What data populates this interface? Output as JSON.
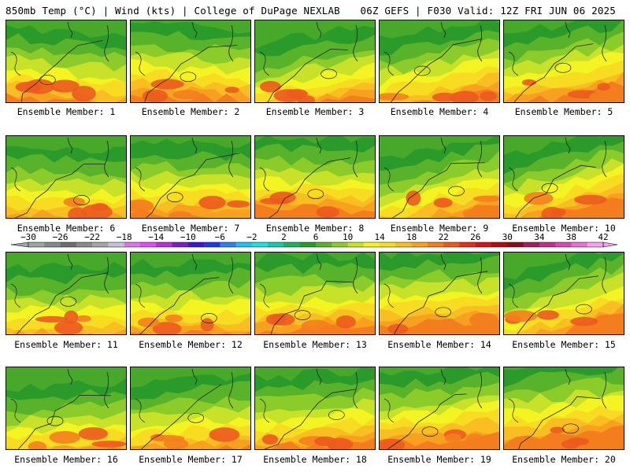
{
  "header": {
    "left": "850mb Temp (°C) | Wind (kts) | College of DuPage NEXLAB",
    "right": "06Z GEFS | F030 Valid: 12Z FRI JUN 06 2025"
  },
  "panels": [
    {
      "label": "Ensemble Member: 1"
    },
    {
      "label": "Ensemble Member: 2"
    },
    {
      "label": "Ensemble Member: 3"
    },
    {
      "label": "Ensemble Member: 4"
    },
    {
      "label": "Ensemble Member: 5"
    },
    {
      "label": "Ensemble Member: 6"
    },
    {
      "label": "Ensemble Member: 7"
    },
    {
      "label": "Ensemble Member: 8"
    },
    {
      "label": "Ensemble Member: 9"
    },
    {
      "label": "Ensemble Member: 10"
    },
    {
      "label": "Ensemble Member: 11"
    },
    {
      "label": "Ensemble Member: 12"
    },
    {
      "label": "Ensemble Member: 13"
    },
    {
      "label": "Ensemble Member: 14"
    },
    {
      "label": "Ensemble Member: 15"
    },
    {
      "label": "Ensemble Member: 16"
    },
    {
      "label": "Ensemble Member: 17"
    },
    {
      "label": "Ensemble Member: 18"
    },
    {
      "label": "Ensemble Member: 19"
    },
    {
      "label": "Ensemble Member: 20"
    }
  ],
  "colorbar": {
    "ticks": [
      "−30",
      "−26",
      "−22",
      "−18",
      "−14",
      "−10",
      "−6",
      "−2",
      "2",
      "6",
      "10",
      "14",
      "18",
      "22",
      "26",
      "30",
      "34",
      "38",
      "42"
    ],
    "colors": [
      "#9aa7a5",
      "#7f8c8a",
      "#6e6e6e",
      "#8a8a8a",
      "#a5a5a5",
      "#c2c2d8",
      "#d877e8",
      "#e04df2",
      "#b830d8",
      "#7a1fc8",
      "#3a1ad0",
      "#1c3ae8",
      "#2d82f0",
      "#22bff0",
      "#1ee0e0",
      "#14c8a8",
      "#20b060",
      "#2a9a2a",
      "#58b22a",
      "#8ccc2a",
      "#c8e22a",
      "#f4f422",
      "#f8dc22",
      "#f8be22",
      "#f8a020",
      "#f47e1e",
      "#ec5a1e",
      "#e42e1c",
      "#d4141a",
      "#b00c18",
      "#8c0c1c",
      "#a0205a",
      "#c0308a",
      "#d848b4",
      "#ea70d8",
      "#f4a4ec"
    ]
  }
}
